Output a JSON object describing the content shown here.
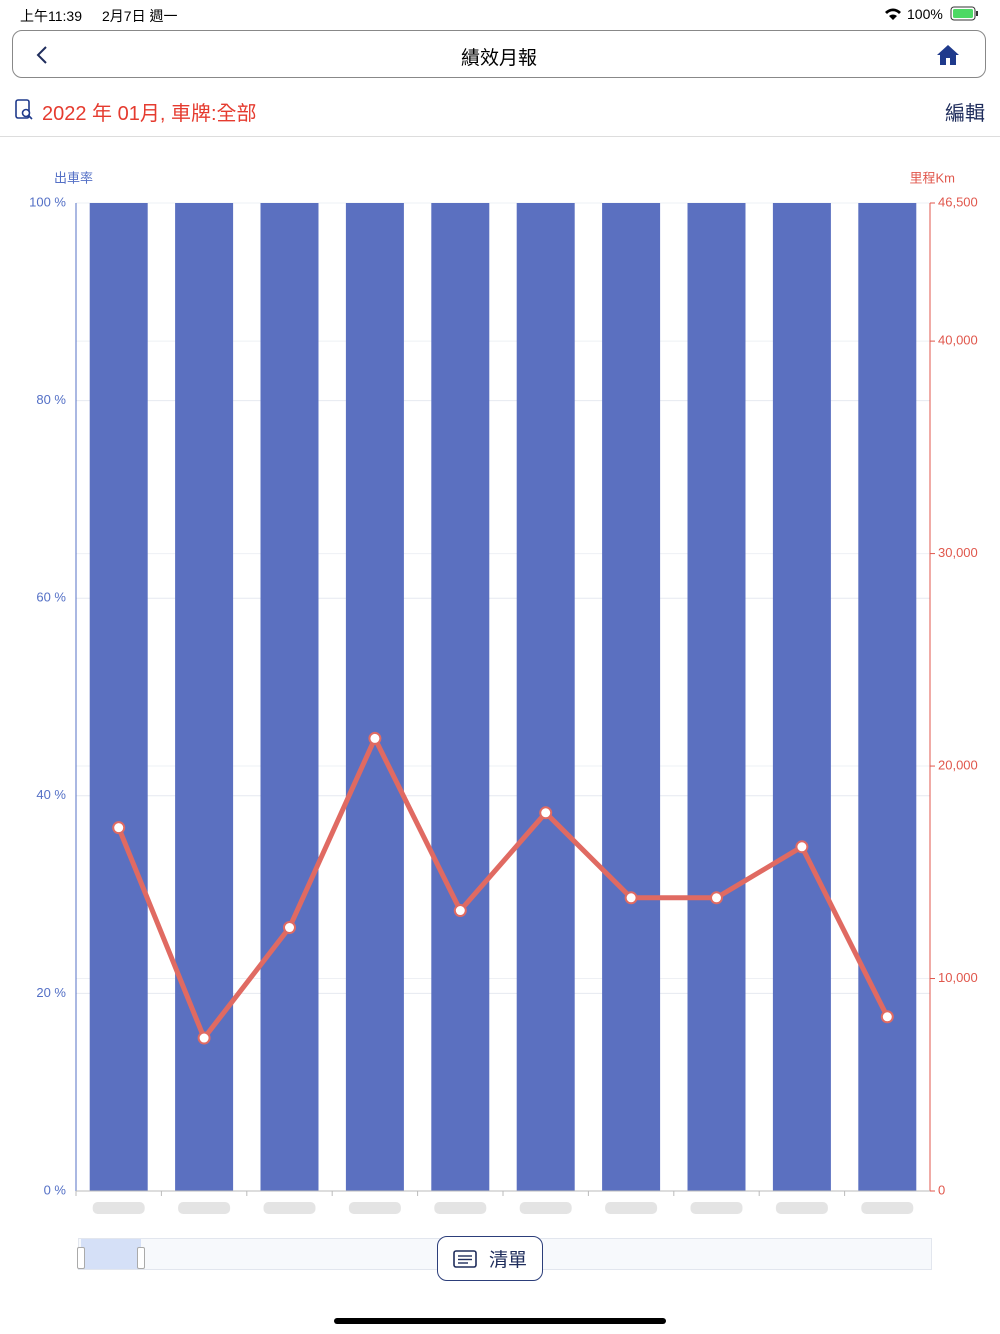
{
  "status_bar": {
    "time": "上午11:39",
    "date": "2月7日 週一",
    "battery": "100%"
  },
  "nav": {
    "title": "績效月報"
  },
  "filter": {
    "text": "2022 年 01月, 車牌:全部",
    "edit": "編輯"
  },
  "chart_data": {
    "type": "bar_line",
    "y_label": "出車率",
    "y2_label": "里程Km",
    "categories": [
      null,
      null,
      null,
      null,
      null,
      null,
      null,
      null,
      null,
      null
    ],
    "series": [
      {
        "type": "bar",
        "color": "#5b70c0",
        "values": [
          100,
          100,
          100,
          100,
          100,
          100,
          100,
          100,
          100,
          100
        ]
      },
      {
        "type": "line",
        "axis": "y2",
        "color": "#e06a62",
        "values": [
          17100,
          7200,
          12400,
          21300,
          13200,
          17800,
          13800,
          13800,
          16200,
          8200
        ]
      }
    ],
    "ylim": [
      0,
      100
    ],
    "yticks": [
      {
        "value": 0,
        "label": "0 %"
      },
      {
        "value": 20,
        "label": "20 %"
      },
      {
        "value": 40,
        "label": "40 %"
      },
      {
        "value": 60,
        "label": "60 %"
      },
      {
        "value": 80,
        "label": "80 %"
      },
      {
        "value": 100,
        "label": "100 %"
      }
    ],
    "y2lim": [
      0,
      46500
    ],
    "y2ticks": [
      0,
      {
        "value": 10000,
        "label": "10,000"
      },
      {
        "value": 20000,
        "label": "20,000"
      },
      {
        "value": 30000,
        "label": "30,000"
      },
      {
        "value": 40000,
        "label": "40,000"
      },
      {
        "value": 46500,
        "label": "46,500"
      }
    ],
    "grid": true
  },
  "list_button": {
    "label": "清單"
  }
}
